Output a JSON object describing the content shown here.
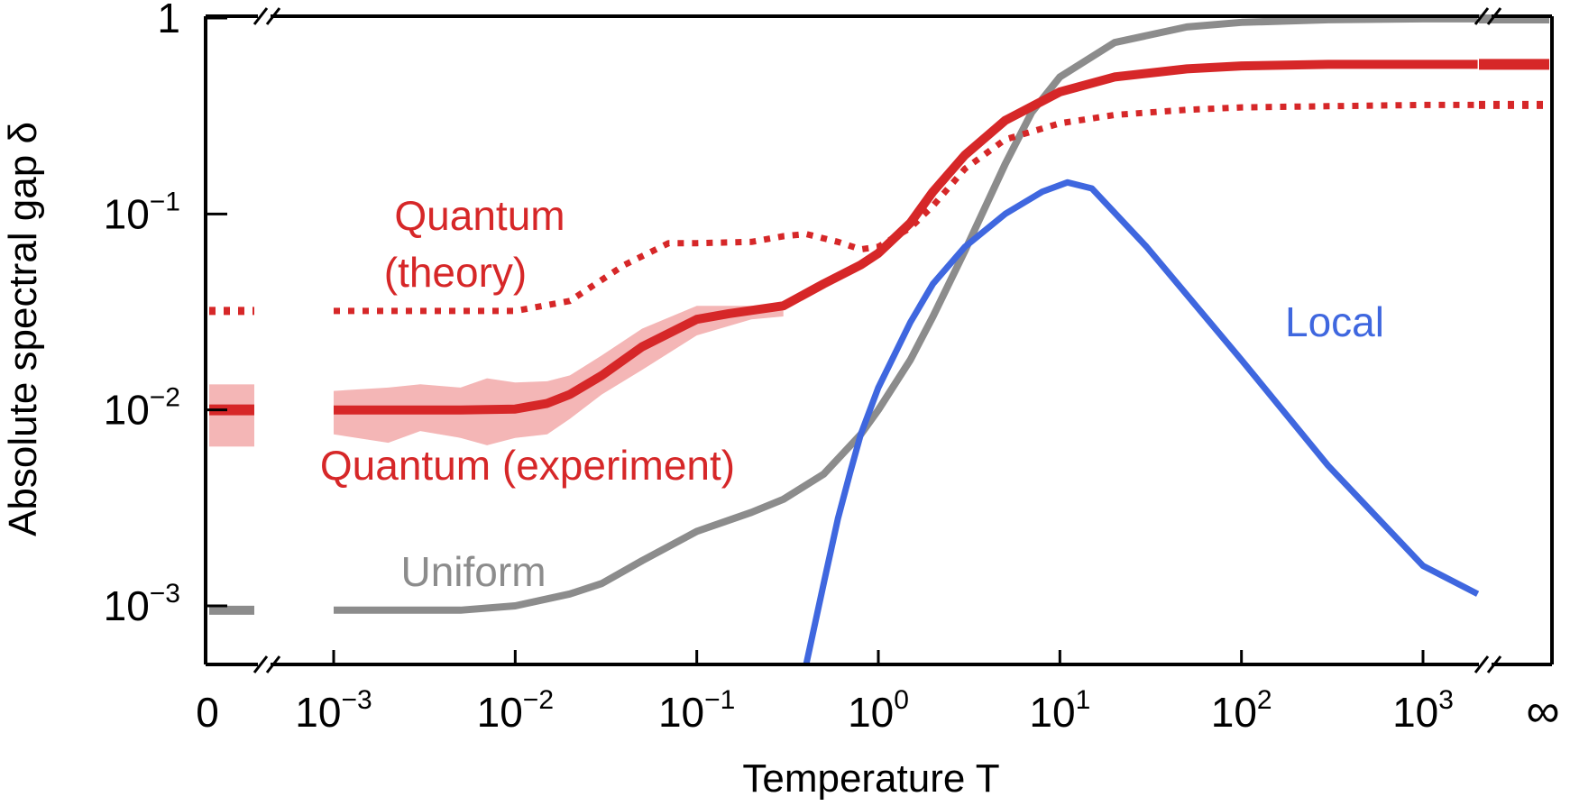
{
  "chart_data": {
    "type": "line",
    "xlabel": "Temperature T",
    "ylabel": "Absolute spectral gap δ",
    "xscale": "log",
    "yscale": "log",
    "xlim": [
      0.0002,
      5000
    ],
    "ylim": [
      0.0005,
      1
    ],
    "x_ticks": [
      {
        "label": "0",
        "exp": "",
        "value": 0
      },
      {
        "label": "10",
        "exp": "−3",
        "value": 0.001
      },
      {
        "label": "10",
        "exp": "−2",
        "value": 0.01
      },
      {
        "label": "10",
        "exp": "−1",
        "value": 0.1
      },
      {
        "label": "10",
        "exp": "0",
        "value": 1
      },
      {
        "label": "10",
        "exp": "1",
        "value": 10
      },
      {
        "label": "10",
        "exp": "2",
        "value": 100
      },
      {
        "label": "10",
        "exp": "3",
        "value": 1000
      },
      {
        "label": "∞",
        "exp": "",
        "value": "inf"
      }
    ],
    "y_ticks": [
      {
        "label": "1",
        "exp": "",
        "value": 1
      },
      {
        "label": "10",
        "exp": "−1",
        "value": 0.1
      },
      {
        "label": "10",
        "exp": "−2",
        "value": 0.01
      },
      {
        "label": "10",
        "exp": "−3",
        "value": 0.001
      }
    ],
    "colors": {
      "quantum": "#d62728",
      "quantum_band": "#f4b6b6",
      "uniform": "#8c8c8c",
      "local": "#3f67df",
      "axis": "#000000"
    },
    "series": [
      {
        "name": "Quantum (theory)",
        "style": "dotted",
        "color": "#d62728",
        "x": [
          0.001,
          0.005,
          0.01,
          0.02,
          0.04,
          0.07,
          0.1,
          0.2,
          0.3,
          0.4,
          0.6,
          0.8,
          1,
          1.5,
          2,
          3,
          5,
          10,
          20,
          50,
          100,
          300,
          1000,
          2000
        ],
        "y": [
          0.032,
          0.032,
          0.032,
          0.036,
          0.055,
          0.071,
          0.071,
          0.072,
          0.077,
          0.079,
          0.072,
          0.066,
          0.068,
          0.085,
          0.11,
          0.17,
          0.24,
          0.29,
          0.32,
          0.34,
          0.35,
          0.355,
          0.36,
          0.36
        ],
        "at_zero": 0.032,
        "at_infinity": 0.36
      },
      {
        "name": "Quantum (experiment)",
        "style": "solid",
        "color": "#d62728",
        "x": [
          0.001,
          0.005,
          0.01,
          0.015,
          0.02,
          0.03,
          0.05,
          0.1,
          0.15,
          0.3,
          0.5,
          0.8,
          1,
          1.5,
          2,
          3,
          5,
          10,
          20,
          50,
          100,
          300,
          1000,
          2000
        ],
        "y": [
          0.01,
          0.01,
          0.0101,
          0.0108,
          0.012,
          0.015,
          0.021,
          0.029,
          0.031,
          0.034,
          0.044,
          0.055,
          0.063,
          0.09,
          0.13,
          0.2,
          0.3,
          0.42,
          0.5,
          0.55,
          0.57,
          0.58,
          0.58,
          0.58
        ],
        "at_zero": 0.01,
        "at_infinity": 0.58,
        "band": {
          "x": [
            0.001,
            0.002,
            0.003,
            0.005,
            0.007,
            0.01,
            0.015,
            0.02,
            0.03,
            0.05,
            0.1,
            0.2,
            0.3
          ],
          "lower": [
            0.0075,
            0.0068,
            0.0078,
            0.0072,
            0.0066,
            0.0072,
            0.0075,
            0.009,
            0.012,
            0.016,
            0.024,
            0.029,
            0.03
          ],
          "upper": [
            0.0125,
            0.013,
            0.0135,
            0.013,
            0.0145,
            0.0138,
            0.014,
            0.015,
            0.019,
            0.026,
            0.034,
            0.034,
            0.035
          ],
          "at_zero_lower": 0.0065,
          "at_zero_upper": 0.0135
        }
      },
      {
        "name": "Uniform",
        "style": "solid",
        "color": "#8c8c8c",
        "x": [
          0.001,
          0.005,
          0.01,
          0.02,
          0.03,
          0.05,
          0.1,
          0.2,
          0.3,
          0.5,
          0.8,
          1,
          1.5,
          2,
          3,
          5,
          7,
          10,
          20,
          50,
          100,
          300,
          1000,
          2000
        ],
        "y": [
          0.00095,
          0.00095,
          0.001,
          0.00115,
          0.0013,
          0.0017,
          0.0024,
          0.003,
          0.0035,
          0.0047,
          0.0075,
          0.01,
          0.018,
          0.03,
          0.065,
          0.18,
          0.33,
          0.5,
          0.75,
          0.9,
          0.95,
          0.98,
          0.99,
          0.99
        ],
        "at_zero": 0.00095,
        "at_infinity": 0.99
      },
      {
        "name": "Local",
        "style": "solid",
        "color": "#3f67df",
        "x": [
          0.4,
          0.5,
          0.6,
          0.7,
          0.8,
          1,
          1.5,
          2,
          3,
          5,
          8,
          11,
          15,
          30,
          100,
          300,
          1000,
          2000
        ],
        "y": [
          0.0005,
          0.0013,
          0.0028,
          0.0048,
          0.0075,
          0.013,
          0.028,
          0.044,
          0.068,
          0.1,
          0.13,
          0.145,
          0.135,
          0.068,
          0.018,
          0.0052,
          0.0016,
          0.00115
        ]
      }
    ],
    "annotations": [
      {
        "text": "Quantum",
        "color": "#d62728"
      },
      {
        "text": "(theory)",
        "color": "#d62728"
      },
      {
        "text": "Quantum (experiment)",
        "color": "#d62728"
      },
      {
        "text": "Uniform",
        "color": "#8c8c8c"
      },
      {
        "text": "Local",
        "color": "#3f67df"
      }
    ]
  }
}
